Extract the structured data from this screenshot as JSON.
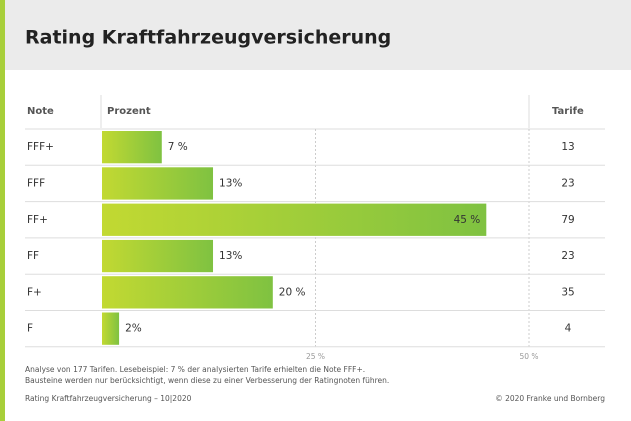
{
  "chart_data": {
    "type": "bar",
    "orientation": "horizontal",
    "title": "Rating Kraftfahrzeugversicherung",
    "column_headers": [
      "Note",
      "Prozent",
      "Tarife"
    ],
    "categories": [
      "FFF+",
      "FFF",
      "FF+",
      "FF",
      "F+",
      "F"
    ],
    "values": [
      7,
      13,
      45,
      13,
      20,
      2
    ],
    "value_labels": [
      "7 %",
      "13%",
      "45 %",
      "13%",
      "20 %",
      "2%"
    ],
    "tarife": [
      13,
      23,
      79,
      23,
      35,
      4
    ],
    "xlim": [
      0,
      50
    ],
    "xticks": [
      {
        "value": 25,
        "label": "25 %"
      },
      {
        "value": 50,
        "label": "50 %"
      }
    ],
    "gradient": [
      "#c2d932",
      "#7fc241"
    ],
    "grid": true,
    "notes": [
      "Analyse von 177 Tarifen. Lesebeispiel: 7 % der analysierten Tarife erhielten die Note FFF+.",
      "Bausteine werden nur berücksichtigt, wenn diese zu einer Verbesserung der Ratingnoten führen."
    ],
    "footer_left": "Rating Kraftfahrzeugversicherung – 10|2020",
    "footer_right": "© 2020 Franke und Bornberg"
  }
}
